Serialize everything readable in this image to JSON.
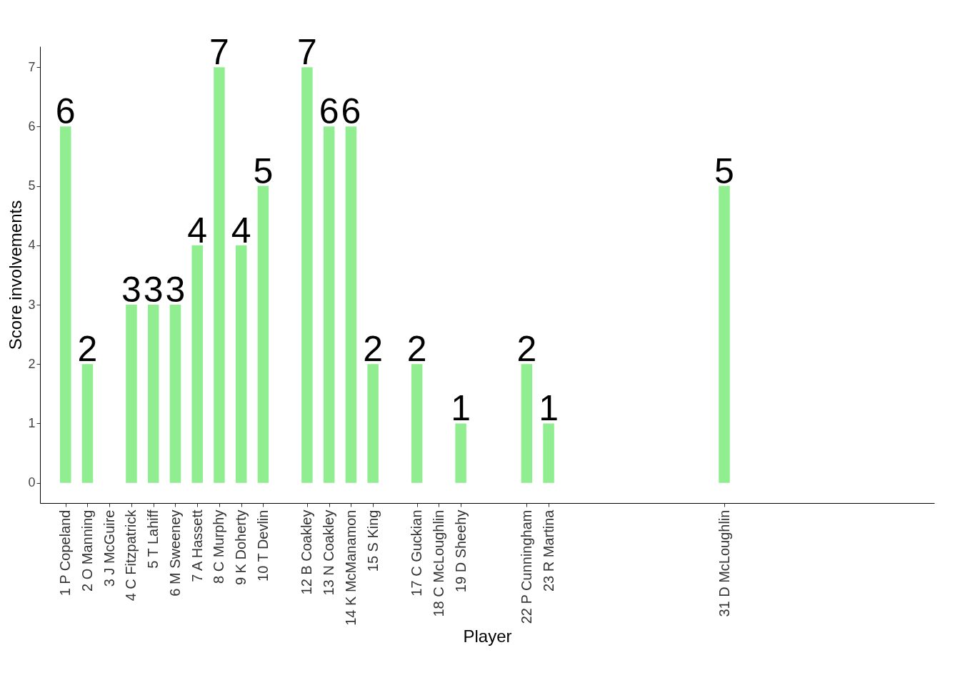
{
  "chart_data": {
    "type": "bar",
    "xlabel": "Player",
    "ylabel": "Score involvements",
    "x": [
      1,
      2,
      3,
      4,
      5,
      6,
      7,
      8,
      9,
      10,
      12,
      13,
      14,
      15,
      17,
      18,
      19,
      22,
      23,
      31
    ],
    "values": [
      6,
      2,
      0,
      3,
      3,
      3,
      4,
      7,
      4,
      5,
      7,
      6,
      6,
      2,
      2,
      0,
      1,
      2,
      1,
      5
    ],
    "value_labels": [
      "6",
      "2",
      null,
      "3",
      "3",
      "3",
      "4",
      "7",
      "4",
      "5",
      "7",
      "6",
      "6",
      "2",
      "2",
      null,
      "1",
      "2",
      "1",
      "5"
    ],
    "color": "#90ee90",
    "xlim": [
      0,
      40.4
    ],
    "xticks": [
      {
        "value": 1,
        "label": "1 P Copeland"
      },
      {
        "value": 2,
        "label": "2 O Manning"
      },
      {
        "value": 3,
        "label": "3 J McGuire"
      },
      {
        "value": 4,
        "label": "4 C Fitzpatrick"
      },
      {
        "value": 5,
        "label": "5 T Lahiff"
      },
      {
        "value": 6,
        "label": "6 M Sweeney"
      },
      {
        "value": 7,
        "label": "7 A Hassett"
      },
      {
        "value": 8,
        "label": "8 C Murphy"
      },
      {
        "value": 9,
        "label": "9 K Doherty"
      },
      {
        "value": 10,
        "label": "10 T Devlin"
      },
      {
        "value": 12,
        "label": "12 B Coakley"
      },
      {
        "value": 13,
        "label": "13 N Coakley"
      },
      {
        "value": 14,
        "label": "14 K McManamon"
      },
      {
        "value": 15,
        "label": "15 S King"
      },
      {
        "value": 17,
        "label": "17 C Guckian"
      },
      {
        "value": 18,
        "label": "18 C McLoughlin"
      },
      {
        "value": 19,
        "label": "19 D Sheehy"
      },
      {
        "value": 22,
        "label": "22 P Cunningham"
      },
      {
        "value": 23,
        "label": "23 R Martina"
      },
      {
        "value": 31,
        "label": "31 D McLoughlin"
      }
    ],
    "ylim": [
      -0.34,
      7.35
    ],
    "yticks": [
      0,
      1,
      2,
      3,
      4,
      5,
      6,
      7
    ],
    "grid": false
  }
}
